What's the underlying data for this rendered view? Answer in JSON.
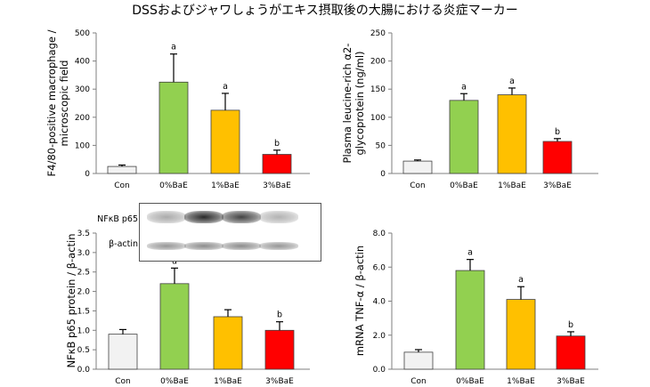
{
  "title": "DSSおよびジャワしょうがエキス摂取後の大腸における炎症マーカー",
  "colors": {
    "control": "#f2f2f2",
    "zero": "#92d050",
    "one": "#ffc000",
    "three": "#ff0000",
    "axis": "#7f7f7f",
    "error": "#000000"
  },
  "blot": {
    "top_label": "NFκB p65",
    "bottom_label": "β-actin",
    "top_intensity": [
      0.45,
      1.0,
      0.9,
      0.4
    ],
    "bottom_intensity": [
      0.55,
      0.6,
      0.6,
      0.55
    ]
  },
  "chart_data": [
    {
      "type": "bar",
      "categories": [
        "Con",
        "0%BaE",
        "1%BaE",
        "3%BaE"
      ],
      "values": [
        25,
        325,
        225,
        68
      ],
      "errors": [
        5,
        100,
        60,
        15
      ],
      "significance": [
        "",
        "a",
        "a",
        "b"
      ],
      "ylabel_lines": [
        "F4/80-positive macrophage /",
        "microscopic field"
      ],
      "ylim": [
        0,
        500
      ],
      "yticks": [
        0,
        100,
        200,
        300,
        400,
        500
      ],
      "ytick_labels": [
        "0",
        "100",
        "200",
        "300",
        "400",
        "500"
      ]
    },
    {
      "type": "bar",
      "categories": [
        "Con",
        "0%BaE",
        "1%BaE",
        "3%BaE"
      ],
      "values": [
        22,
        130,
        140,
        57
      ],
      "errors": [
        2,
        12,
        12,
        5
      ],
      "significance": [
        "",
        "a",
        "a",
        "b"
      ],
      "ylabel_lines": [
        "Plasma leucine-rich α2-",
        "glycoprotein (ng/ml)"
      ],
      "ylim": [
        0,
        250
      ],
      "yticks": [
        0,
        50,
        100,
        150,
        200,
        250
      ],
      "ytick_labels": [
        "0",
        "50",
        "100",
        "150",
        "200",
        "250"
      ]
    },
    {
      "type": "bar",
      "categories": [
        "Con",
        "0%BaE",
        "1%BaE",
        "3%BaE"
      ],
      "values": [
        0.9,
        2.2,
        1.35,
        1.0
      ],
      "errors": [
        0.12,
        0.4,
        0.18,
        0.22
      ],
      "significance": [
        "",
        "a",
        "",
        "b"
      ],
      "ylabel_lines": [
        "NFκB p65 protein / β-actin"
      ],
      "ylim": [
        0,
        3.5
      ],
      "yticks": [
        0,
        0.5,
        1,
        1.5,
        2,
        2.5,
        3,
        3.5
      ],
      "ytick_labels": [
        "0.0",
        "0.5",
        "1.0",
        "1.5",
        "2.0",
        "2.5",
        "3.0",
        "3.5"
      ]
    },
    {
      "type": "bar",
      "categories": [
        "Con",
        "0%BaE",
        "1%BaE",
        "3%BaE"
      ],
      "values": [
        1.0,
        5.8,
        4.1,
        1.95
      ],
      "errors": [
        0.15,
        0.65,
        0.75,
        0.25
      ],
      "significance": [
        "",
        "a",
        "a",
        "b"
      ],
      "ylabel_lines": [
        "mRNA TNF-α / β-actin"
      ],
      "ylim": [
        0,
        8
      ],
      "yticks": [
        0,
        2,
        4,
        6,
        8
      ],
      "ytick_labels": [
        "0.0",
        "2.0",
        "4.0",
        "6.0",
        "8.0"
      ]
    }
  ]
}
